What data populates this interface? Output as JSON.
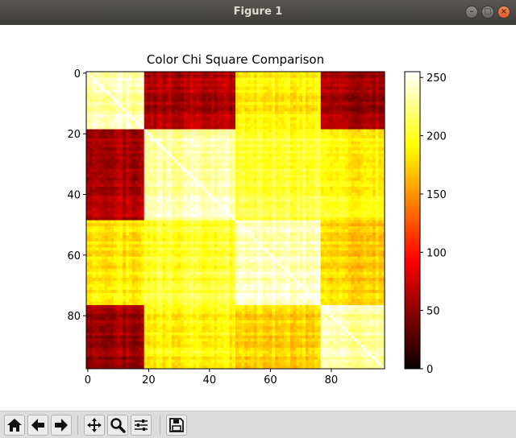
{
  "window": {
    "title": "Figure 1"
  },
  "chart_data": {
    "type": "heatmap",
    "title": "Color Chi Square Comparison",
    "xlabel": "",
    "ylabel": "",
    "size": [
      98,
      98
    ],
    "x_ticks": [
      0,
      20,
      40,
      60,
      80
    ],
    "y_ticks": [
      0,
      20,
      40,
      60,
      80
    ],
    "colorbar": {
      "min": 0,
      "max": 255,
      "ticks": [
        0,
        50,
        100,
        150,
        200,
        250
      ],
      "colormap": "hot"
    },
    "groups": [
      {
        "start": 0,
        "end": 19
      },
      {
        "start": 19,
        "end": 49
      },
      {
        "start": 49,
        "end": 77
      },
      {
        "start": 77,
        "end": 98
      }
    ],
    "block_values": [
      [
        235,
        60,
        185,
        55
      ],
      [
        60,
        235,
        205,
        190
      ],
      [
        185,
        205,
        240,
        175
      ],
      [
        55,
        190,
        175,
        235
      ]
    ],
    "diagonal_value": 255
  },
  "toolbar": {
    "buttons": [
      {
        "name": "home-button",
        "icon": "home-icon"
      },
      {
        "name": "back-button",
        "icon": "arrow-left-icon"
      },
      {
        "name": "forward-button",
        "icon": "arrow-right-icon"
      },
      {
        "name": "pan-button",
        "icon": "move-icon"
      },
      {
        "name": "zoom-button",
        "icon": "magnifier-icon"
      },
      {
        "name": "configure-subplots-button",
        "icon": "sliders-icon"
      },
      {
        "name": "save-button",
        "icon": "floppy-icon"
      }
    ]
  }
}
